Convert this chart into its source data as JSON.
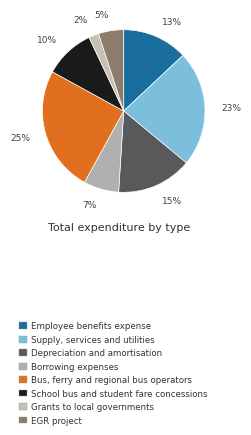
{
  "title": "Total expenditure by type",
  "slices": [
    13,
    23,
    15,
    7,
    25,
    10,
    2,
    5
  ],
  "colors": [
    "#1a6e9e",
    "#7bbfdc",
    "#58595b",
    "#b0b0b0",
    "#e07020",
    "#1a1a1a",
    "#c8c0b0",
    "#8b7d6b"
  ],
  "labels": [
    "13%",
    "23%",
    "15%",
    "7%",
    "25%",
    "10%",
    "2%",
    "5%"
  ],
  "legend_labels": [
    "Employee benefits expense",
    "Supply, services and utilities",
    "Depreciation and amortisation",
    "Borrowing expenses",
    "Bus, ferry and regional bus operators",
    "School bus and student fare concessions",
    "Grants to local governments",
    "EGR project"
  ],
  "startangle": 90,
  "label_fontsize": 6.5,
  "title_fontsize": 8.0,
  "legend_fontsize": 6.2
}
